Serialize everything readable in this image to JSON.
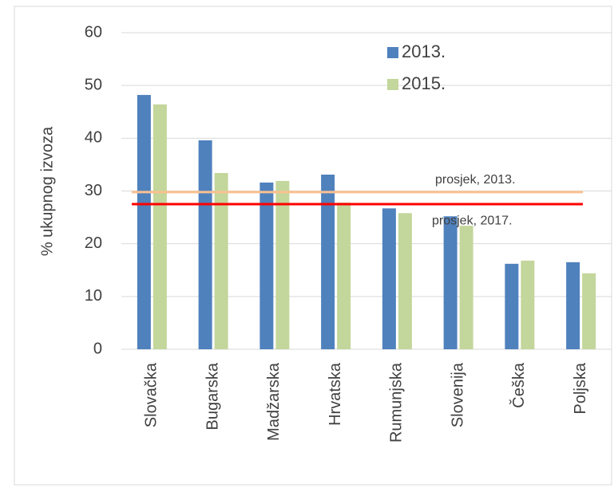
{
  "chart_data": {
    "type": "bar",
    "y_label": "% ukupnog izvoza",
    "categories": [
      "Slovačka",
      "Bugarska",
      "Madžarska",
      "Hrvatska",
      "Rumunjska",
      "Slovenija",
      "Češka",
      "Poljska"
    ],
    "series": [
      {
        "name": "2013.",
        "color": "#4f81bd",
        "values": [
          48.2,
          39.6,
          31.6,
          33.1,
          26.7,
          25.2,
          16.2,
          16.5
        ]
      },
      {
        "name": "2015.",
        "color": "#c3d69b",
        "values": [
          46.4,
          33.4,
          31.9,
          27.8,
          25.8,
          23.4,
          16.8,
          14.4
        ]
      }
    ],
    "reference_lines": [
      {
        "label": "prosjek, 2013.",
        "value": 29.8,
        "color": "#fac090"
      },
      {
        "label": "prosjek, 2017.",
        "value": 27.5,
        "color": "#ff0000"
      }
    ],
    "ylim": [
      0,
      60
    ],
    "yticks": [
      0,
      10,
      20,
      30,
      40,
      50,
      60
    ],
    "grid": true
  }
}
